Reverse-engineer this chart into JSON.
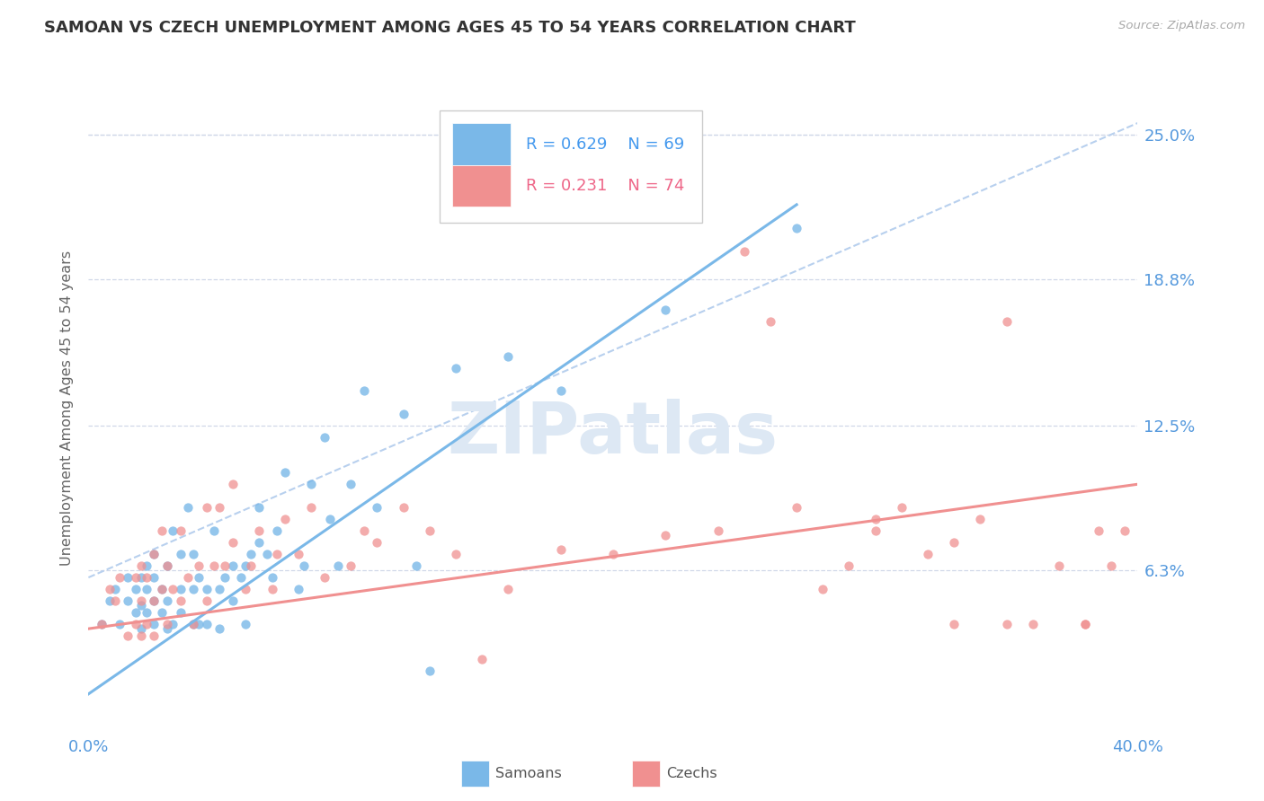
{
  "title": "SAMOAN VS CZECH UNEMPLOYMENT AMONG AGES 45 TO 54 YEARS CORRELATION CHART",
  "source": "Source: ZipAtlas.com",
  "ylabel": "Unemployment Among Ages 45 to 54 years",
  "xlim": [
    0.0,
    0.4
  ],
  "ylim": [
    -0.005,
    0.27
  ],
  "yticks": [
    0.063,
    0.125,
    0.188,
    0.25
  ],
  "ytick_labels": [
    "6.3%",
    "12.5%",
    "18.8%",
    "25.0%"
  ],
  "xtick_labels": [
    "0.0%",
    "40.0%"
  ],
  "xtick_pos": [
    0.0,
    0.4
  ],
  "background_color": "#ffffff",
  "grid_color": "#d0d8e8",
  "samoans_color": "#7ab8e8",
  "czechs_color": "#f09090",
  "samoans_R": "0.629",
  "samoans_N": "69",
  "czechs_R": "0.231",
  "czechs_N": "74",
  "watermark_text": "ZIPatlas",
  "samoans_scatter_x": [
    0.005,
    0.008,
    0.01,
    0.012,
    0.015,
    0.015,
    0.018,
    0.018,
    0.02,
    0.02,
    0.02,
    0.022,
    0.022,
    0.022,
    0.025,
    0.025,
    0.025,
    0.025,
    0.028,
    0.028,
    0.03,
    0.03,
    0.03,
    0.032,
    0.032,
    0.035,
    0.035,
    0.035,
    0.038,
    0.04,
    0.04,
    0.04,
    0.042,
    0.042,
    0.045,
    0.045,
    0.048,
    0.05,
    0.05,
    0.052,
    0.055,
    0.055,
    0.058,
    0.06,
    0.06,
    0.062,
    0.065,
    0.065,
    0.068,
    0.07,
    0.072,
    0.075,
    0.08,
    0.082,
    0.085,
    0.09,
    0.092,
    0.095,
    0.1,
    0.105,
    0.11,
    0.12,
    0.125,
    0.13,
    0.14,
    0.16,
    0.18,
    0.22,
    0.27
  ],
  "samoans_scatter_y": [
    0.04,
    0.05,
    0.055,
    0.04,
    0.05,
    0.06,
    0.045,
    0.055,
    0.038,
    0.048,
    0.06,
    0.045,
    0.055,
    0.065,
    0.04,
    0.05,
    0.06,
    0.07,
    0.045,
    0.055,
    0.038,
    0.05,
    0.065,
    0.04,
    0.08,
    0.045,
    0.055,
    0.07,
    0.09,
    0.04,
    0.055,
    0.07,
    0.04,
    0.06,
    0.04,
    0.055,
    0.08,
    0.038,
    0.055,
    0.06,
    0.05,
    0.065,
    0.06,
    0.04,
    0.065,
    0.07,
    0.075,
    0.09,
    0.07,
    0.06,
    0.08,
    0.105,
    0.055,
    0.065,
    0.1,
    0.12,
    0.085,
    0.065,
    0.1,
    0.14,
    0.09,
    0.13,
    0.065,
    0.02,
    0.15,
    0.155,
    0.14,
    0.175,
    0.21
  ],
  "czechs_scatter_x": [
    0.005,
    0.008,
    0.01,
    0.012,
    0.015,
    0.018,
    0.018,
    0.02,
    0.02,
    0.02,
    0.022,
    0.022,
    0.025,
    0.025,
    0.025,
    0.028,
    0.028,
    0.03,
    0.03,
    0.032,
    0.035,
    0.035,
    0.038,
    0.04,
    0.042,
    0.045,
    0.045,
    0.048,
    0.05,
    0.052,
    0.055,
    0.055,
    0.06,
    0.062,
    0.065,
    0.07,
    0.072,
    0.075,
    0.08,
    0.085,
    0.09,
    0.1,
    0.105,
    0.11,
    0.12,
    0.13,
    0.14,
    0.15,
    0.16,
    0.18,
    0.2,
    0.22,
    0.24,
    0.25,
    0.26,
    0.27,
    0.28,
    0.29,
    0.3,
    0.31,
    0.32,
    0.33,
    0.34,
    0.35,
    0.36,
    0.37,
    0.38,
    0.385,
    0.39,
    0.395,
    0.38,
    0.3,
    0.33,
    0.35
  ],
  "czechs_scatter_y": [
    0.04,
    0.055,
    0.05,
    0.06,
    0.035,
    0.04,
    0.06,
    0.035,
    0.05,
    0.065,
    0.04,
    0.06,
    0.035,
    0.05,
    0.07,
    0.055,
    0.08,
    0.04,
    0.065,
    0.055,
    0.05,
    0.08,
    0.06,
    0.04,
    0.065,
    0.05,
    0.09,
    0.065,
    0.09,
    0.065,
    0.075,
    0.1,
    0.055,
    0.065,
    0.08,
    0.055,
    0.07,
    0.085,
    0.07,
    0.09,
    0.06,
    0.065,
    0.08,
    0.075,
    0.09,
    0.08,
    0.07,
    0.025,
    0.055,
    0.072,
    0.07,
    0.078,
    0.08,
    0.2,
    0.17,
    0.09,
    0.055,
    0.065,
    0.08,
    0.09,
    0.07,
    0.075,
    0.085,
    0.17,
    0.04,
    0.065,
    0.04,
    0.08,
    0.065,
    0.08,
    0.04,
    0.085,
    0.04,
    0.04
  ],
  "samoans_line_x": [
    0.0,
    0.27
  ],
  "samoans_line_y": [
    0.01,
    0.22
  ],
  "czechs_line_x": [
    0.0,
    0.4
  ],
  "czechs_line_y": [
    0.038,
    0.1
  ],
  "dashed_line_x": [
    0.0,
    0.4
  ],
  "dashed_line_y": [
    0.06,
    0.255
  ],
  "tick_color": "#5599dd",
  "axis_label_color": "#666666",
  "title_color": "#333333",
  "source_color": "#aaaaaa"
}
